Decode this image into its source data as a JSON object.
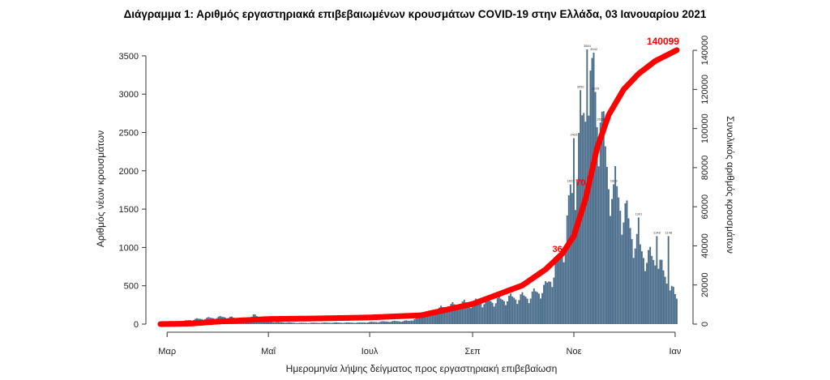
{
  "chart_data": {
    "type": "bar",
    "title": "Διάγραμμα 1: Αριθμός εργαστηριακά επιβεβαιωμένων κρουσμάτων COVID-19 στην Ελλάδα, 03 Ιανουαρίου 2021",
    "xlabel": "Ημερομηνία λήψης δείγματος προς εργαστηριακή επιβεβαίωση",
    "ylabel": "Αριθμός νέων κρουσμάτων",
    "y2label": "Συνολικός αριθμός κρουσμάτων",
    "ylim": [
      0,
      3700
    ],
    "y2lim": [
      0,
      145000
    ],
    "yticks": [
      0,
      500,
      1000,
      1500,
      2000,
      2500,
      3000,
      3500
    ],
    "y2ticks": [
      0,
      20000,
      40000,
      60000,
      80000,
      100000,
      120000,
      140000
    ],
    "x_start": "2020-02-26",
    "x_end": "2021-01-02",
    "xticks": [
      {
        "date": "2020-03-01",
        "label": "Μαρ"
      },
      {
        "date": "2020-05-01",
        "label": "Μαΐ"
      },
      {
        "date": "2020-07-01",
        "label": "Ιουλ"
      },
      {
        "date": "2020-09-01",
        "label": "Σεπ"
      },
      {
        "date": "2020-11-01",
        "label": "Νοε"
      },
      {
        "date": "2021-01-01",
        "label": "Ιαν"
      }
    ],
    "daily_keypoints": [
      [
        "2020-02-26",
        1
      ],
      [
        "2020-03-05",
        10
      ],
      [
        "2020-03-15",
        60
      ],
      [
        "2020-03-25",
        80
      ],
      [
        "2020-04-05",
        100
      ],
      [
        "2020-04-15",
        70
      ],
      [
        "2020-04-22",
        120
      ],
      [
        "2020-05-05",
        30
      ],
      [
        "2020-05-20",
        15
      ],
      [
        "2020-06-10",
        20
      ],
      [
        "2020-06-25",
        20
      ],
      [
        "2020-07-10",
        35
      ],
      [
        "2020-07-25",
        45
      ],
      [
        "2020-08-05",
        150
      ],
      [
        "2020-08-15",
        230
      ],
      [
        "2020-08-25",
        280
      ],
      [
        "2020-09-05",
        300
      ],
      [
        "2020-09-15",
        320
      ],
      [
        "2020-09-25",
        360
      ],
      [
        "2020-10-05",
        380
      ],
      [
        "2020-10-15",
        500
      ],
      [
        "2020-10-22",
        800
      ],
      [
        "2020-10-27",
        1200
      ],
      [
        "2020-10-31",
        1800
      ],
      [
        "2020-11-03",
        2200
      ],
      [
        "2020-11-07",
        2900
      ],
      [
        "2020-11-10",
        3200
      ],
      [
        "2020-11-12",
        3100
      ],
      [
        "2020-11-17",
        2800
      ],
      [
        "2020-11-22",
        2000
      ],
      [
        "2020-11-27",
        1800
      ],
      [
        "2020-12-02",
        1500
      ],
      [
        "2020-12-07",
        1200
      ],
      [
        "2020-12-12",
        1000
      ],
      [
        "2020-12-17",
        900
      ],
      [
        "2020-12-22",
        850
      ],
      [
        "2020-12-27",
        600
      ],
      [
        "2021-01-02",
        350
      ]
    ],
    "bar_highlights": [
      [
        "2020-11-09",
        3584
      ],
      [
        "2020-11-13",
        3542
      ],
      [
        "2020-11-05",
        3052
      ],
      [
        "2020-11-14",
        3029
      ],
      [
        "2020-11-01",
        2426
      ],
      [
        "2020-11-17",
        2629
      ],
      [
        "2020-10-30",
        1822
      ],
      [
        "2020-11-25",
        1823
      ],
      [
        "2020-12-10",
        1391
      ],
      [
        "2020-12-21",
        1148
      ],
      [
        "2020-12-28",
        1148
      ]
    ],
    "cumulative_keypoints": [
      [
        "2020-02-26",
        0
      ],
      [
        "2020-03-15",
        250
      ],
      [
        "2020-04-01",
        1300
      ],
      [
        "2020-05-01",
        2600
      ],
      [
        "2020-06-01",
        2900
      ],
      [
        "2020-07-01",
        3400
      ],
      [
        "2020-08-01",
        4500
      ],
      [
        "2020-09-01",
        10300
      ],
      [
        "2020-10-01",
        19800
      ],
      [
        "2020-10-15",
        28000
      ],
      [
        "2020-10-25",
        36000
      ],
      [
        "2020-11-01",
        45000
      ],
      [
        "2020-11-08",
        64000
      ],
      [
        "2020-11-15",
        90000
      ],
      [
        "2020-11-22",
        107000
      ],
      [
        "2020-12-01",
        120000
      ],
      [
        "2020-12-10",
        128000
      ],
      [
        "2020-12-20",
        134500
      ],
      [
        "2021-01-02",
        140099
      ]
    ],
    "annotations": [
      {
        "date": "2020-10-24",
        "value": 36000,
        "label": "36"
      },
      {
        "date": "2020-11-07",
        "value": 70000,
        "label": "70"
      },
      {
        "date": "2021-01-02",
        "value": 140099,
        "label": "140099"
      }
    ],
    "bar_color": "#4a6d8c",
    "line_color": "#ff0000"
  }
}
